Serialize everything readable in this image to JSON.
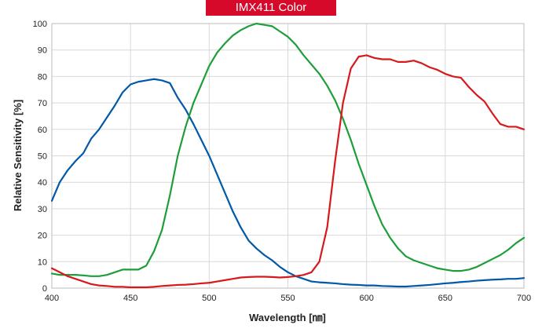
{
  "chart_data": {
    "type": "line",
    "title": "IMX411 Color",
    "xlabel": "Wavelength [㎚]",
    "ylabel": "Relative Sensitivity [%]",
    "xlim": [
      400,
      700
    ],
    "ylim": [
      0,
      100
    ],
    "x_ticks": [
      "400",
      "450",
      "500",
      "550",
      "600",
      "650",
      "700"
    ],
    "y_ticks": [
      "0",
      "10",
      "20",
      "30",
      "40",
      "50",
      "60",
      "70",
      "80",
      "90",
      "100"
    ],
    "grid": true,
    "legend": "none",
    "series": [
      {
        "color": "#0059a8",
        "points": [
          [
            400,
            33
          ],
          [
            405,
            40
          ],
          [
            410,
            44.5
          ],
          [
            415,
            48
          ],
          [
            420,
            51
          ],
          [
            425,
            56.5
          ],
          [
            430,
            60
          ],
          [
            435,
            64.5
          ],
          [
            440,
            69
          ],
          [
            445,
            74
          ],
          [
            450,
            77
          ],
          [
            455,
            78
          ],
          [
            460,
            78.5
          ],
          [
            465,
            79
          ],
          [
            470,
            78.5
          ],
          [
            475,
            77.5
          ],
          [
            480,
            72
          ],
          [
            485,
            67.5
          ],
          [
            490,
            62
          ],
          [
            495,
            56
          ],
          [
            500,
            50
          ],
          [
            505,
            43
          ],
          [
            510,
            36
          ],
          [
            515,
            29
          ],
          [
            520,
            23
          ],
          [
            525,
            18
          ],
          [
            530,
            15
          ],
          [
            535,
            12.5
          ],
          [
            540,
            10.5
          ],
          [
            545,
            8
          ],
          [
            550,
            6
          ],
          [
            555,
            4.5
          ],
          [
            560,
            3.5
          ],
          [
            565,
            2.5
          ],
          [
            570,
            2.2
          ],
          [
            575,
            2
          ],
          [
            580,
            1.8
          ],
          [
            585,
            1.5
          ],
          [
            590,
            1.3
          ],
          [
            595,
            1.2
          ],
          [
            600,
            1
          ],
          [
            605,
            1
          ],
          [
            610,
            0.8
          ],
          [
            615,
            0.7
          ],
          [
            620,
            0.6
          ],
          [
            625,
            0.6
          ],
          [
            630,
            0.8
          ],
          [
            635,
            1
          ],
          [
            640,
            1.2
          ],
          [
            645,
            1.5
          ],
          [
            650,
            1.8
          ],
          [
            655,
            2
          ],
          [
            660,
            2.3
          ],
          [
            665,
            2.5
          ],
          [
            670,
            2.8
          ],
          [
            675,
            3
          ],
          [
            680,
            3.2
          ],
          [
            685,
            3.3
          ],
          [
            690,
            3.5
          ],
          [
            695,
            3.5
          ],
          [
            700,
            3.8
          ]
        ]
      },
      {
        "color": "#1e9e3a",
        "points": [
          [
            400,
            5.5
          ],
          [
            405,
            5
          ],
          [
            410,
            5
          ],
          [
            415,
            5
          ],
          [
            420,
            4.8
          ],
          [
            425,
            4.5
          ],
          [
            430,
            4.5
          ],
          [
            435,
            5
          ],
          [
            440,
            6
          ],
          [
            445,
            7
          ],
          [
            450,
            7
          ],
          [
            455,
            7
          ],
          [
            460,
            8.5
          ],
          [
            465,
            14
          ],
          [
            470,
            22
          ],
          [
            475,
            35
          ],
          [
            480,
            50
          ],
          [
            485,
            61
          ],
          [
            490,
            70
          ],
          [
            495,
            77
          ],
          [
            500,
            84
          ],
          [
            505,
            89
          ],
          [
            510,
            92.5
          ],
          [
            515,
            95.5
          ],
          [
            520,
            97.5
          ],
          [
            525,
            99
          ],
          [
            530,
            100
          ],
          [
            535,
            99.5
          ],
          [
            540,
            99
          ],
          [
            545,
            97
          ],
          [
            550,
            95
          ],
          [
            555,
            92
          ],
          [
            560,
            88
          ],
          [
            565,
            84.5
          ],
          [
            570,
            81
          ],
          [
            575,
            76.5
          ],
          [
            580,
            71
          ],
          [
            585,
            64
          ],
          [
            590,
            56
          ],
          [
            595,
            47
          ],
          [
            600,
            39
          ],
          [
            605,
            31
          ],
          [
            610,
            24
          ],
          [
            615,
            19
          ],
          [
            620,
            15
          ],
          [
            625,
            12
          ],
          [
            630,
            10.5
          ],
          [
            635,
            9.5
          ],
          [
            640,
            8.5
          ],
          [
            645,
            7.5
          ],
          [
            650,
            7
          ],
          [
            655,
            6.5
          ],
          [
            660,
            6.5
          ],
          [
            665,
            7
          ],
          [
            670,
            8
          ],
          [
            675,
            9.5
          ],
          [
            680,
            11
          ],
          [
            685,
            12.5
          ],
          [
            690,
            14.5
          ],
          [
            695,
            17
          ],
          [
            700,
            19
          ]
        ]
      },
      {
        "color": "#d7191c",
        "points": [
          [
            400,
            7.5
          ],
          [
            405,
            6
          ],
          [
            410,
            4.5
          ],
          [
            415,
            3.5
          ],
          [
            420,
            2.5
          ],
          [
            425,
            1.5
          ],
          [
            430,
            1
          ],
          [
            435,
            0.8
          ],
          [
            440,
            0.5
          ],
          [
            445,
            0.5
          ],
          [
            450,
            0.3
          ],
          [
            455,
            0.3
          ],
          [
            460,
            0.3
          ],
          [
            465,
            0.5
          ],
          [
            470,
            0.8
          ],
          [
            475,
            1
          ],
          [
            480,
            1.2
          ],
          [
            485,
            1.3
          ],
          [
            490,
            1.5
          ],
          [
            495,
            1.8
          ],
          [
            500,
            2
          ],
          [
            505,
            2.5
          ],
          [
            510,
            3
          ],
          [
            515,
            3.5
          ],
          [
            520,
            4
          ],
          [
            525,
            4.2
          ],
          [
            530,
            4.3
          ],
          [
            535,
            4.3
          ],
          [
            540,
            4.2
          ],
          [
            545,
            4
          ],
          [
            550,
            4.2
          ],
          [
            555,
            4.5
          ],
          [
            560,
            5
          ],
          [
            565,
            6
          ],
          [
            570,
            10
          ],
          [
            575,
            23
          ],
          [
            580,
            48
          ],
          [
            585,
            70
          ],
          [
            590,
            83
          ],
          [
            595,
            87.5
          ],
          [
            600,
            88
          ],
          [
            605,
            87
          ],
          [
            610,
            86.5
          ],
          [
            615,
            86.5
          ],
          [
            620,
            85.5
          ],
          [
            625,
            85.5
          ],
          [
            630,
            86
          ],
          [
            635,
            85
          ],
          [
            640,
            83.5
          ],
          [
            645,
            82.5
          ],
          [
            650,
            81
          ],
          [
            655,
            80
          ],
          [
            660,
            79.5
          ],
          [
            665,
            76
          ],
          [
            670,
            73
          ],
          [
            675,
            70.5
          ],
          [
            680,
            66
          ],
          [
            685,
            62
          ],
          [
            690,
            61
          ],
          [
            695,
            61
          ],
          [
            700,
            60
          ]
        ]
      }
    ]
  }
}
